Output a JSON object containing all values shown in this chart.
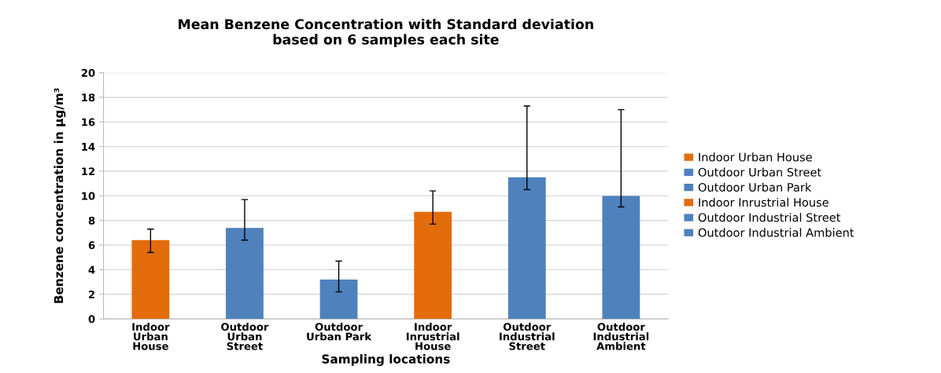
{
  "chart_data": {
    "type": "bar",
    "title": "Mean Benzene Concentration with Standard deviation\nbased on 6 samples each site",
    "xlabel": "Sampling locations",
    "ylabel": "Benzene concentration in μg/m³",
    "categories": [
      "Indoor\nUrban\nHouse",
      "Outdoor\nUrban\nStreet",
      "Outdoor\nUrban Park",
      "Indoor\nInrustrial\nHouse",
      "Outdoor\nIndustrial\nStreet",
      "Outdoor\nIndustrial\nAmbient"
    ],
    "series": [
      {
        "name": "Indoor Urban House",
        "color": "#e36c0a",
        "values": [
          6.4,
          null,
          null,
          null,
          null,
          null
        ],
        "errors": [
          [
            5.4,
            7.3
          ],
          null,
          null,
          null,
          null,
          null
        ]
      },
      {
        "name": "Outdoor Urban Street",
        "color": "#4f81bd",
        "values": [
          null,
          7.4,
          null,
          null,
          null,
          null
        ],
        "errors": [
          null,
          [
            6.4,
            9.7
          ],
          null,
          null,
          null,
          null
        ]
      },
      {
        "name": "Outdoor Urban Park",
        "color": "#4f81bd",
        "values": [
          null,
          null,
          3.2,
          null,
          null,
          null
        ],
        "errors": [
          null,
          null,
          [
            2.2,
            4.7
          ],
          null,
          null,
          null
        ]
      },
      {
        "name": "Indoor Inrustrial House",
        "color": "#e36c0a",
        "values": [
          null,
          null,
          null,
          8.7,
          null,
          null
        ],
        "errors": [
          null,
          null,
          null,
          [
            7.7,
            10.4
          ],
          null,
          null
        ]
      },
      {
        "name": "Outdoor Industrial Street",
        "color": "#4f81bd",
        "values": [
          null,
          null,
          null,
          null,
          11.5,
          null
        ],
        "errors": [
          null,
          null,
          null,
          null,
          [
            10.5,
            17.3
          ],
          null
        ]
      },
      {
        "name": "Outdoor Industrial Ambient",
        "color": "#4f81bd",
        "values": [
          null,
          null,
          null,
          null,
          null,
          10.0
        ],
        "errors": [
          null,
          null,
          null,
          null,
          null,
          [
            9.1,
            17.0
          ]
        ]
      }
    ],
    "ylim": [
      0,
      20
    ],
    "yticks": [
      0,
      2,
      4,
      6,
      8,
      10,
      12,
      14,
      16,
      18,
      20
    ],
    "grid": "y",
    "legend": "right"
  }
}
